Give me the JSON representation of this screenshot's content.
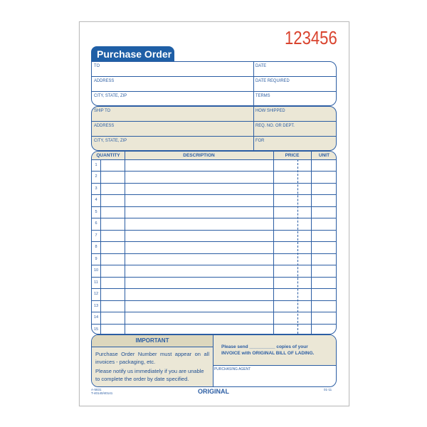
{
  "form_number": "123456",
  "title": "Purchase Order",
  "vendor_section": {
    "left": [
      "TO",
      "ADDRESS",
      "CITY, STATE, ZIP"
    ],
    "right": [
      "DATE",
      "DATE REQUIRED",
      "TERMS"
    ]
  },
  "ship_section": {
    "left": [
      "SHIP TO",
      "ADDRESS",
      "CITY, STATE, ZIP"
    ],
    "right": [
      "HOW SHIPPED",
      "REQ. NO. OR DEPT.",
      "FOR"
    ]
  },
  "table": {
    "headers": {
      "quantity": "QUANTITY",
      "description": "DESCRIPTION",
      "price": "PRICE",
      "unit": "UNIT"
    },
    "rows": [
      "1",
      "2",
      "3",
      "4",
      "5",
      "6",
      "7",
      "8",
      "9",
      "10",
      "11",
      "12",
      "13",
      "14",
      "15"
    ]
  },
  "important": {
    "title": "IMPORTANT",
    "line1": "Purchase Order Number must appear on all invoices - packaging, etc.",
    "line2": "Please notify us immediately if you are unable to complete the order by date specified."
  },
  "invoice_note": "Please send __________ copies of your INVOICE with ORIGINAL BILL OF LADING.",
  "purchasing_agent": "PURCHASING AGENT",
  "footer": {
    "code1": "A-5831",
    "code2": "T-40140/40141",
    "copy": "ORIGINAL",
    "date_code": "01-11"
  },
  "colors": {
    "blue": "#2b5da3",
    "tan": "#ebe7d6",
    "number_red": "#d9432e"
  }
}
